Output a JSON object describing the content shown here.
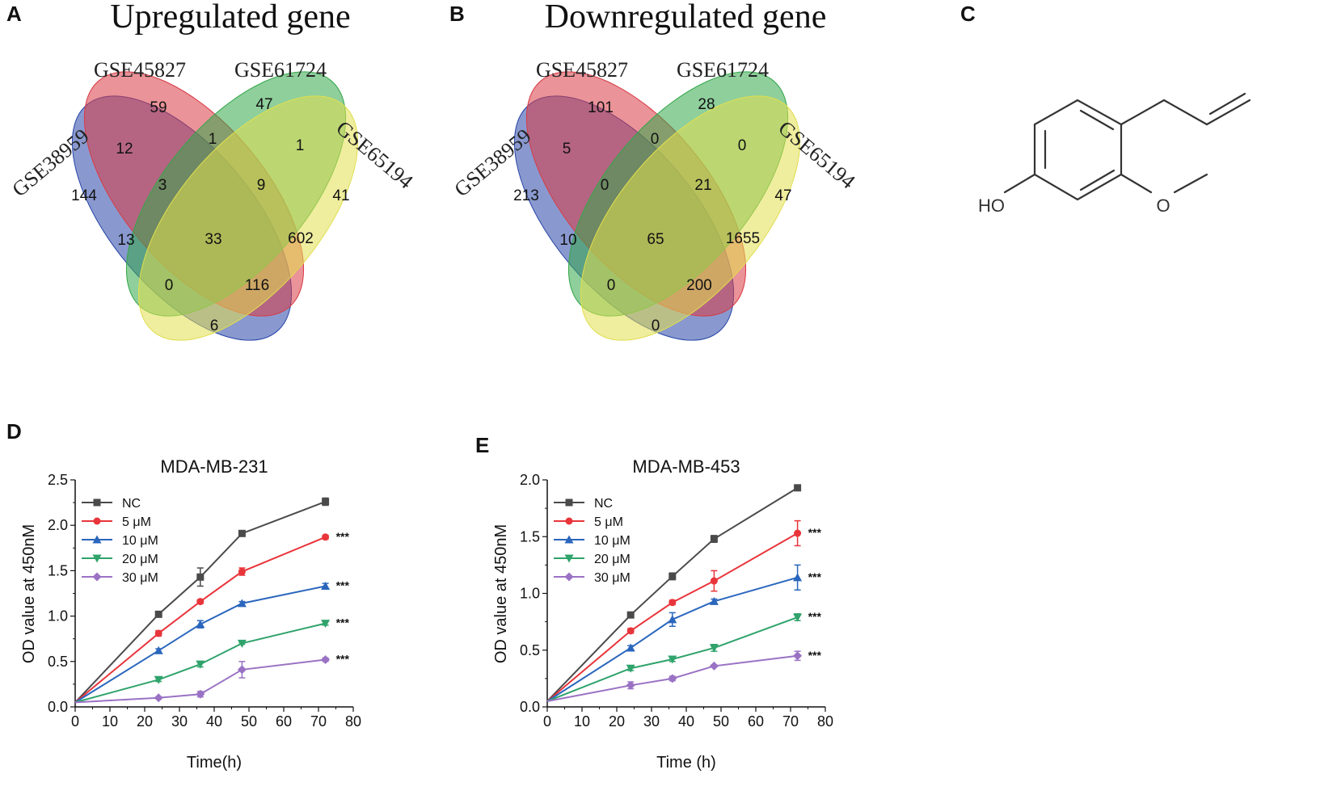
{
  "panels": {
    "A": "A",
    "B": "B",
    "C": "C",
    "D": "D",
    "E": "E"
  },
  "venn": [
    {
      "title": "Upregulated gene",
      "sets": [
        "GSE38959",
        "GSE45827",
        "GSE61724",
        "GSE65194"
      ],
      "colors": [
        "#2845a8",
        "#d83a44",
        "#33a74a",
        "#e1df4f"
      ],
      "counts": {
        "only_38959": "144",
        "only_45827": "59",
        "only_61724": "47",
        "only_65194": "41",
        "s38959_45827": "12",
        "s45827_61724": "1",
        "s61724_65194": "1",
        "s38959_45827_61724": "3",
        "s45827_61724_65194": "9",
        "all_four": "33",
        "s38959_61724": "13",
        "s45827_65194": "602",
        "s38959_61724_65194": "0",
        "s38959_45827_65194": "116",
        "s38959_65194": "6"
      }
    },
    {
      "title": "Downregulated gene",
      "sets": [
        "GSE38959",
        "GSE45827",
        "GSE61724",
        "GSE65194"
      ],
      "colors": [
        "#2845a8",
        "#d83a44",
        "#33a74a",
        "#e1df4f"
      ],
      "counts": {
        "only_38959": "213",
        "only_45827": "101",
        "only_61724": "28",
        "only_65194": "47",
        "s38959_45827": "5",
        "s45827_61724": "0",
        "s61724_65194": "0",
        "s38959_45827_61724": "0",
        "s45827_61724_65194": "21",
        "all_four": "65",
        "s38959_61724": "10",
        "s45827_65194": "1655",
        "s38959_61724_65194": "0",
        "s38959_45827_65194": "200",
        "s38959_65194": "0"
      }
    }
  ],
  "chemical": {
    "hydroxyl_label": "HO",
    "methoxy_label": "O"
  },
  "chart_data": [
    {
      "type": "line",
      "panel": "D",
      "title": "MDA-MB-231",
      "xlabel": "Time(h)",
      "ylabel": "OD value at 450nM",
      "xlim": [
        0,
        80
      ],
      "ylim": [
        0,
        2.5
      ],
      "xticks": [
        "0",
        "10",
        "20",
        "30",
        "40",
        "50",
        "60",
        "70",
        "80"
      ],
      "yticks": [
        "0.0",
        "0.5",
        "1.0",
        "1.5",
        "2.0",
        "2.5"
      ],
      "x": [
        0,
        24,
        36,
        48,
        72
      ],
      "series": [
        {
          "name": "NC",
          "color": "#4a4a4a",
          "marker": "square",
          "values": [
            0.05,
            1.02,
            1.43,
            1.91,
            2.26
          ],
          "errors": [
            0,
            0.03,
            0.1,
            0.02,
            0.04
          ],
          "sig": ""
        },
        {
          "name": "5 μM",
          "color": "#e8353b",
          "marker": "circle",
          "values": [
            0.05,
            0.81,
            1.16,
            1.49,
            1.87
          ],
          "errors": [
            0,
            0.03,
            0.02,
            0.04,
            0.02
          ],
          "sig": "***"
        },
        {
          "name": "10 μM",
          "color": "#2a66bd",
          "marker": "triangle-up",
          "values": [
            0.05,
            0.62,
            0.91,
            1.14,
            1.33
          ],
          "errors": [
            0,
            0.02,
            0.04,
            0.02,
            0.03
          ],
          "sig": "***"
        },
        {
          "name": "20 μM",
          "color": "#2fa36b",
          "marker": "triangle-down",
          "values": [
            0.05,
            0.3,
            0.47,
            0.7,
            0.92
          ],
          "errors": [
            0,
            0.02,
            0.03,
            0.01,
            0.02
          ],
          "sig": "***"
        },
        {
          "name": "30 μM",
          "color": "#9a72c4",
          "marker": "diamond",
          "values": [
            0.05,
            0.1,
            0.14,
            0.41,
            0.52
          ],
          "errors": [
            0,
            0.01,
            0.03,
            0.09,
            0.02
          ],
          "sig": "***"
        }
      ]
    },
    {
      "type": "line",
      "panel": "E",
      "title": "MDA-MB-453",
      "xlabel": "Time (h)",
      "ylabel": "OD value at 450nM",
      "xlim": [
        0,
        80
      ],
      "ylim": [
        0,
        2.0
      ],
      "xticks": [
        "0",
        "10",
        "20",
        "30",
        "40",
        "50",
        "60",
        "70",
        "80"
      ],
      "yticks": [
        "0.0",
        "0.5",
        "1.0",
        "1.5",
        "2.0"
      ],
      "x": [
        0,
        24,
        36,
        48,
        72
      ],
      "series": [
        {
          "name": "NC",
          "color": "#4a4a4a",
          "marker": "square",
          "values": [
            0.05,
            0.81,
            1.15,
            1.48,
            1.93
          ],
          "errors": [
            0,
            0.02,
            0.03,
            0.03,
            0.02
          ],
          "sig": ""
        },
        {
          "name": "5 μM",
          "color": "#e8353b",
          "marker": "circle",
          "values": [
            0.05,
            0.67,
            0.92,
            1.11,
            1.53
          ],
          "errors": [
            0,
            0.02,
            0.02,
            0.09,
            0.11
          ],
          "sig": "***"
        },
        {
          "name": "10 μM",
          "color": "#2a66bd",
          "marker": "triangle-up",
          "values": [
            0.05,
            0.52,
            0.77,
            0.93,
            1.14
          ],
          "errors": [
            0,
            0.02,
            0.06,
            0.02,
            0.11
          ],
          "sig": "***"
        },
        {
          "name": "20 μM",
          "color": "#2fa36b",
          "marker": "triangle-down",
          "values": [
            0.05,
            0.34,
            0.42,
            0.52,
            0.79
          ],
          "errors": [
            0,
            0.02,
            0.02,
            0.03,
            0.03
          ],
          "sig": "***"
        },
        {
          "name": "30 μM",
          "color": "#9a72c4",
          "marker": "diamond",
          "values": [
            0.05,
            0.19,
            0.25,
            0.36,
            0.45
          ],
          "errors": [
            0,
            0.03,
            0.02,
            0.01,
            0.04
          ],
          "sig": "***"
        }
      ]
    }
  ]
}
